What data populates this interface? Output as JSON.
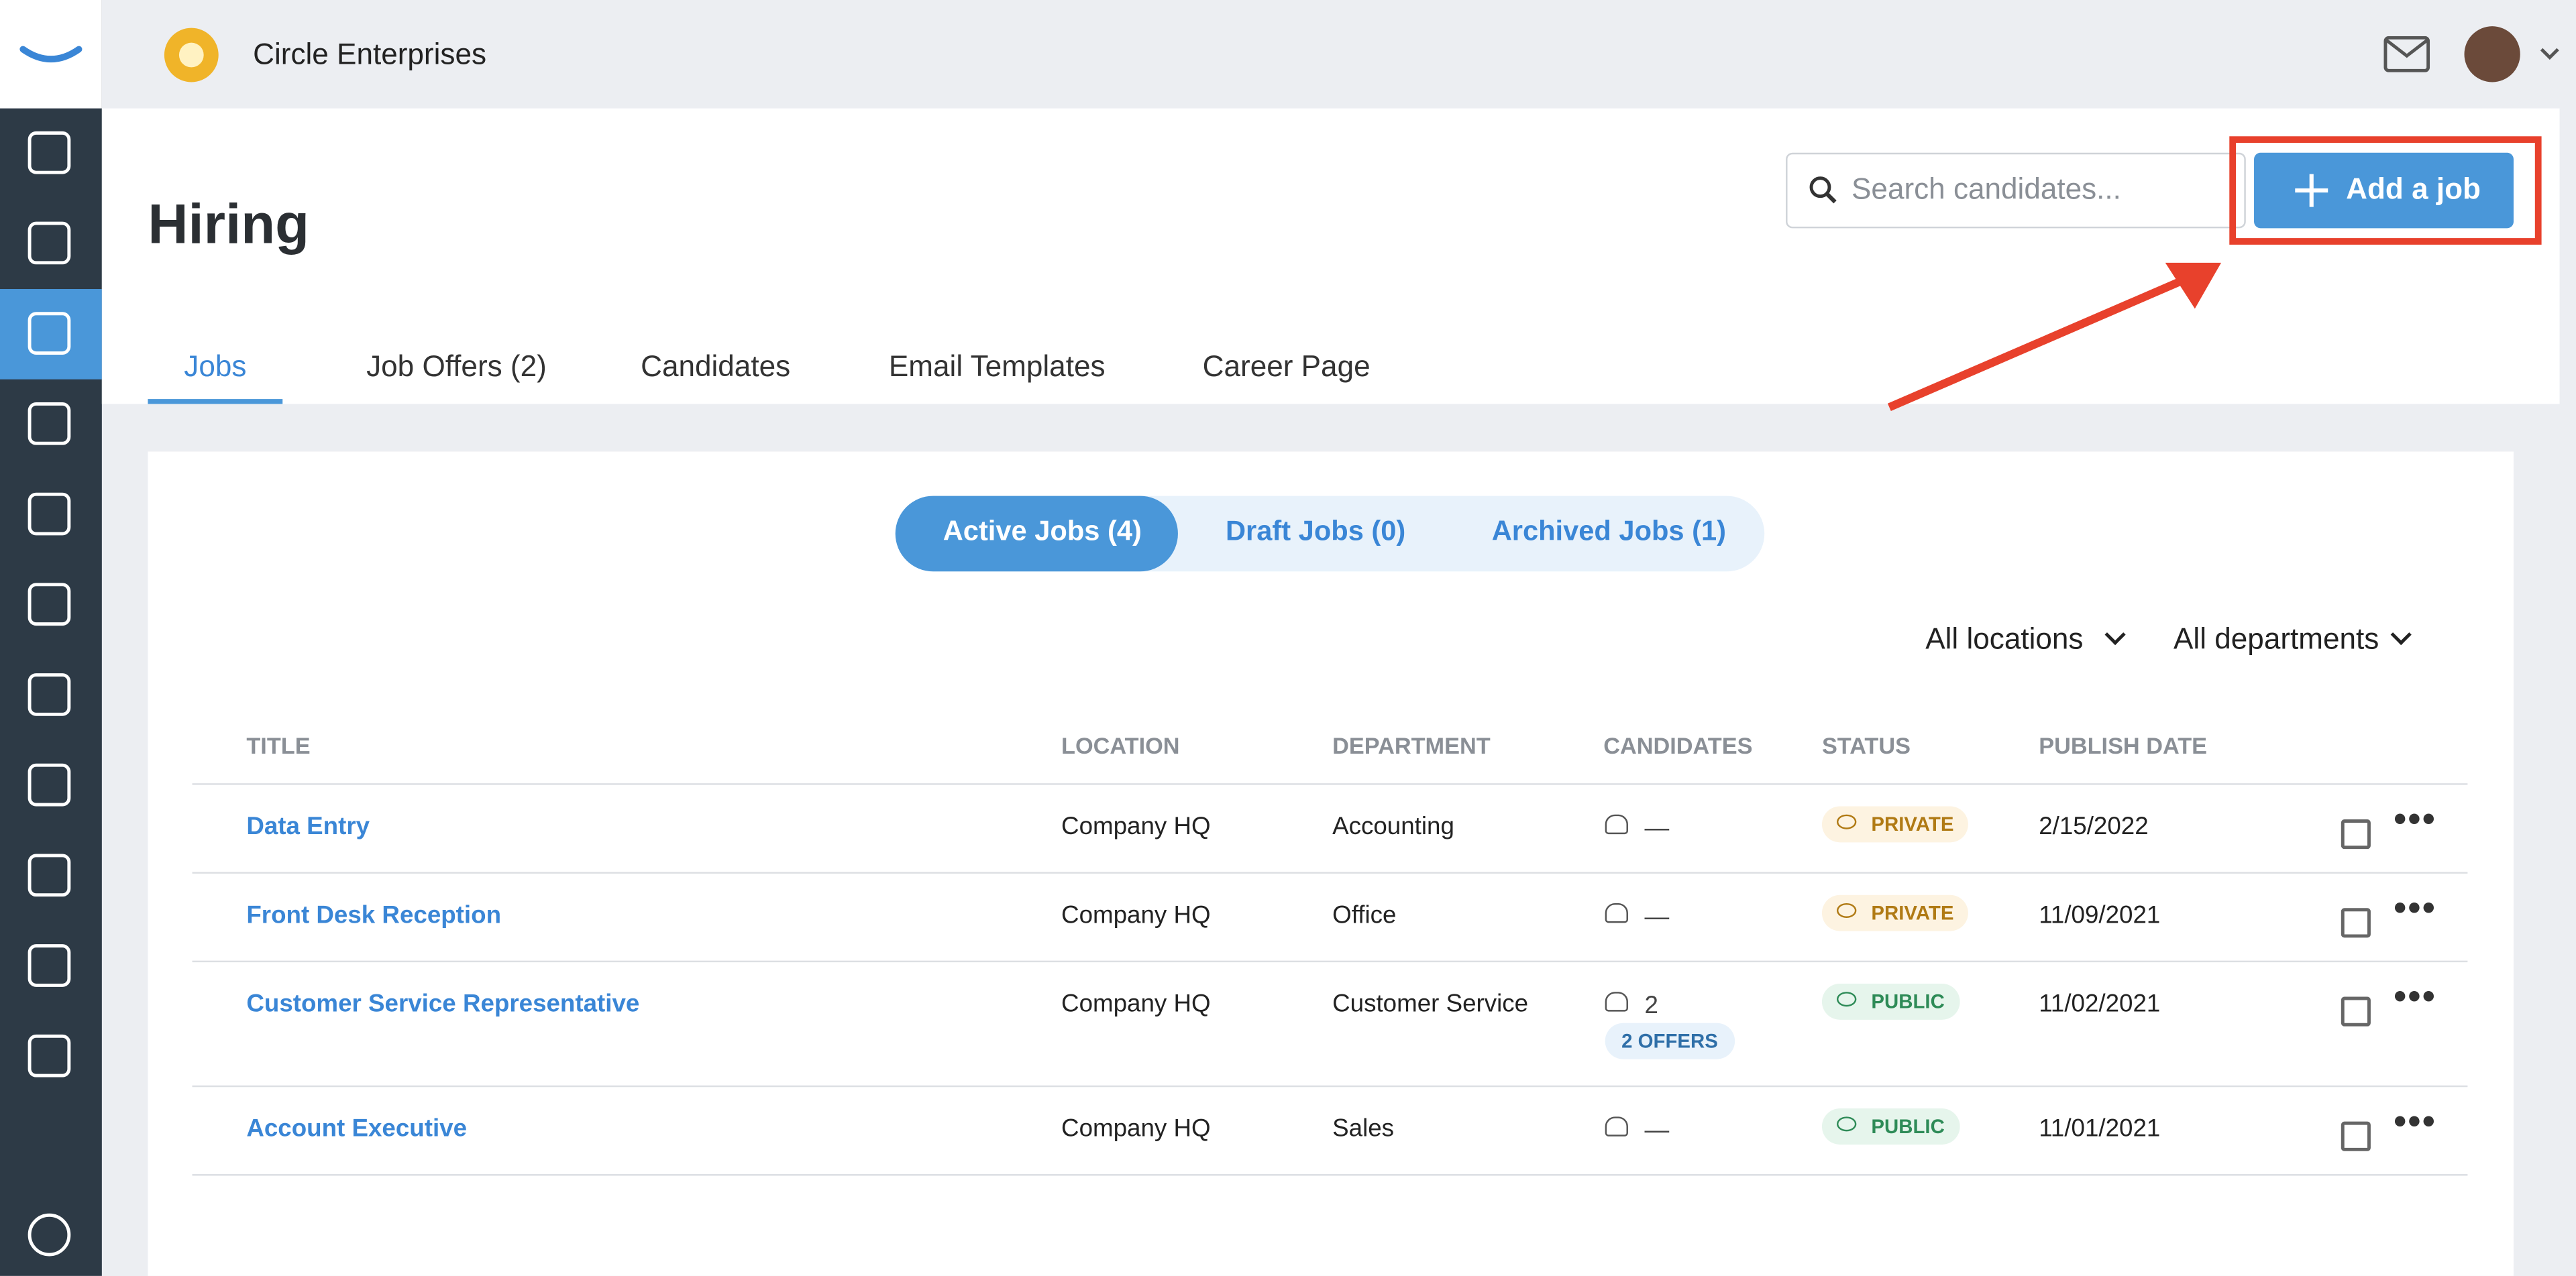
{
  "header": {
    "company": "Circle Enterprises"
  },
  "page": {
    "title": "Hiring",
    "search_placeholder": "Search candidates...",
    "add_button": "Add a job"
  },
  "tabs": [
    "Jobs",
    "Job Offers (2)",
    "Candidates",
    "Email Templates",
    "Career Page"
  ],
  "job_tabs": [
    "Active Jobs (4)",
    "Draft Jobs (0)",
    "Archived Jobs (1)"
  ],
  "filters": [
    "All locations",
    "All departments"
  ],
  "table": {
    "columns": [
      "TITLE",
      "LOCATION",
      "DEPARTMENT",
      "CANDIDATES",
      "STATUS",
      "PUBLISH DATE"
    ],
    "rows": [
      {
        "title": "Data Entry",
        "location": "Company HQ",
        "department": "Accounting",
        "candidates": "—",
        "status": "PRIVATE",
        "publish_date": "2/15/2022"
      },
      {
        "title": "Front Desk Reception",
        "location": "Company HQ",
        "department": "Office",
        "candidates": "—",
        "status": "PRIVATE",
        "publish_date": "11/09/2021"
      },
      {
        "title": "Customer Service Representative",
        "location": "Company HQ",
        "department": "Customer Service",
        "candidates": 2,
        "offers": "2 OFFERS",
        "status": "PUBLIC",
        "publish_date": "11/02/2021"
      },
      {
        "title": "Account Executive",
        "location": "Company HQ",
        "department": "Sales",
        "candidates": "—",
        "status": "PUBLIC",
        "publish_date": "11/01/2021"
      }
    ]
  }
}
